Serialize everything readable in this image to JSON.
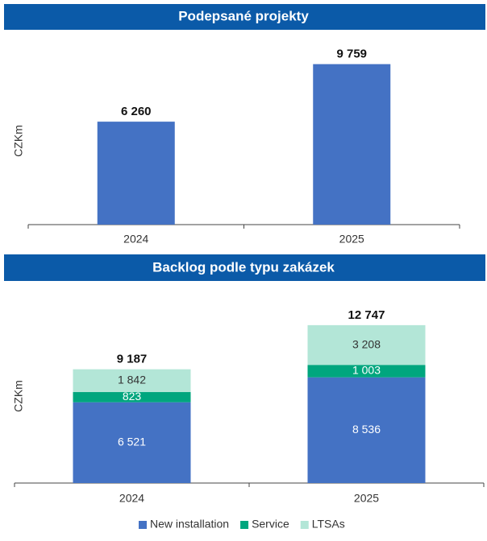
{
  "chart_data": [
    {
      "type": "bar",
      "title": "Podepsané projekty",
      "y_label": "CZKm",
      "categories": [
        "2024",
        "2025"
      ],
      "values": [
        6260,
        9759
      ],
      "value_labels": [
        "6 260",
        "9 759"
      ],
      "color": "#4472c4",
      "ylim": [
        0,
        11700
      ]
    },
    {
      "type": "stacked_bar",
      "title": "Backlog podle typu zakázek",
      "y_label": "CZKm",
      "categories": [
        "2024",
        "2025"
      ],
      "series": [
        {
          "name": "New installation",
          "color": "#4472c4",
          "label_color": "#ffffff",
          "values": [
            6521,
            8536
          ],
          "value_labels": [
            "6 521",
            "8 536"
          ]
        },
        {
          "name": "Service",
          "color": "#00a67e",
          "label_color": "#ffffff",
          "values": [
            823,
            1003
          ],
          "value_labels": [
            "823",
            "1 003"
          ]
        },
        {
          "name": "LTSAs",
          "color": "#b3e6d7",
          "label_color": "#333333",
          "values": [
            1842,
            3208
          ],
          "value_labels": [
            "1 842",
            "3 208"
          ]
        }
      ],
      "totals": [
        9187,
        12747
      ],
      "total_labels": [
        "9 187",
        "12 747"
      ],
      "ylim": [
        0,
        16250
      ],
      "legend": "bottom"
    }
  ]
}
